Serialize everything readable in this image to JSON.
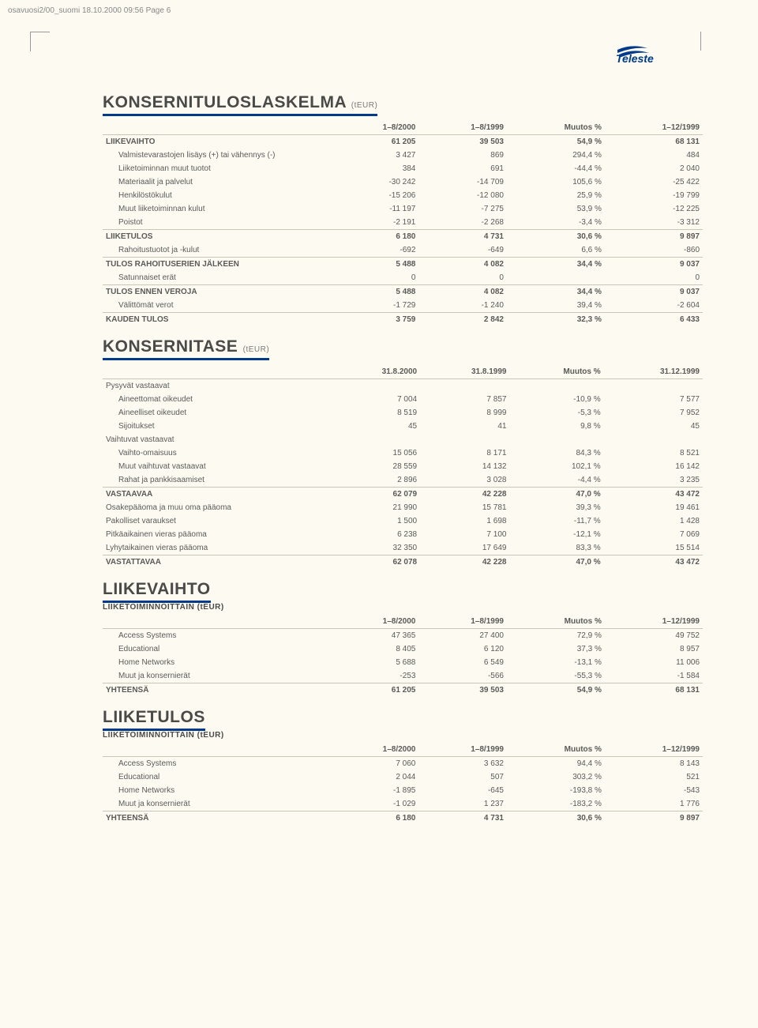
{
  "header_note": "osavuosi2/00_suomi 18.10.2000 09:56 Page 6",
  "logo_alt": "Teleste",
  "s1": {
    "title": "KONSERNITULOSLASKELMA",
    "unit": "(tEUR)",
    "cols": [
      "1–8/2000",
      "1–8/1999",
      "Muutos %",
      "1–12/1999"
    ],
    "rows": [
      {
        "l": "LIIKEVAIHTO",
        "v": [
          "61 205",
          "39 503",
          "54,9 %",
          "68 131"
        ],
        "b": 1
      },
      {
        "l": "Valmistevarastojen lisäys (+) tai vähennys (-)",
        "v": [
          "3 427",
          "869",
          "294,4 %",
          "484"
        ],
        "i": 1
      },
      {
        "l": "Liiketoiminnan muut tuotot",
        "v": [
          "384",
          "691",
          "-44,4 %",
          "2 040"
        ],
        "i": 1
      },
      {
        "l": "Materiaalit ja palvelut",
        "v": [
          "-30 242",
          "-14 709",
          "105,6 %",
          "-25 422"
        ],
        "i": 1
      },
      {
        "l": "Henkilöstökulut",
        "v": [
          "-15 206",
          "-12 080",
          "25,9 %",
          "-19 799"
        ],
        "i": 1
      },
      {
        "l": "Muut liiketoiminnan kulut",
        "v": [
          "-11 197",
          "-7 275",
          "53,9 %",
          "-12 225"
        ],
        "i": 1
      },
      {
        "l": "Poistot",
        "v": [
          "-2 191",
          "-2 268",
          "-3,4 %",
          "-3 312"
        ],
        "i": 1,
        "hr": 1
      },
      {
        "l": "LIIKETULOS",
        "v": [
          "6 180",
          "4 731",
          "30,6 %",
          "9 897"
        ],
        "b": 1
      },
      {
        "l": "Rahoitustuotot ja -kulut",
        "v": [
          "-692",
          "-649",
          "6,6 %",
          "-860"
        ],
        "i": 1,
        "hr": 1
      },
      {
        "l": "TULOS RAHOITUSERIEN JÄLKEEN",
        "v": [
          "5 488",
          "4 082",
          "34,4 %",
          "9 037"
        ],
        "b": 1
      },
      {
        "l": "Satunnaiset erät",
        "v": [
          "0",
          "0",
          "",
          "0"
        ],
        "i": 1,
        "hr": 1
      },
      {
        "l": "TULOS ENNEN VEROJA",
        "v": [
          "5 488",
          "4 082",
          "34,4 %",
          "9 037"
        ],
        "b": 1
      },
      {
        "l": "Välittömät verot",
        "v": [
          "-1 729",
          "-1 240",
          "39,4 %",
          "-2 604"
        ],
        "i": 1,
        "hr": 1
      },
      {
        "l": "KAUDEN TULOS",
        "v": [
          "3 759",
          "2 842",
          "32,3 %",
          "6 433"
        ],
        "b": 1
      }
    ]
  },
  "s2": {
    "title": "KONSERNITASE",
    "unit": "(tEUR)",
    "cols": [
      "31.8.2000",
      "31.8.1999",
      "Muutos %",
      "31.12.1999"
    ],
    "rows": [
      {
        "l": "Pysyvät vastaavat",
        "v": [
          "",
          "",
          "",
          ""
        ]
      },
      {
        "l": "Aineettomat oikeudet",
        "v": [
          "7 004",
          "7 857",
          "-10,9 %",
          "7 577"
        ],
        "i": 1
      },
      {
        "l": "Aineelliset oikeudet",
        "v": [
          "8 519",
          "8 999",
          "-5,3 %",
          "7 952"
        ],
        "i": 1
      },
      {
        "l": "Sijoitukset",
        "v": [
          "45",
          "41",
          "9,8 %",
          "45"
        ],
        "i": 1
      },
      {
        "l": "Vaihtuvat vastaavat",
        "v": [
          "",
          "",
          "",
          ""
        ]
      },
      {
        "l": "Vaihto-omaisuus",
        "v": [
          "15 056",
          "8 171",
          "84,3 %",
          "8 521"
        ],
        "i": 1
      },
      {
        "l": "Muut vaihtuvat vastaavat",
        "v": [
          "28 559",
          "14 132",
          "102,1 %",
          "16 142"
        ],
        "i": 1
      },
      {
        "l": "Rahat ja pankkisaamiset",
        "v": [
          "2 896",
          "3 028",
          "-4,4 %",
          "3 235"
        ],
        "i": 1,
        "hr": 1
      },
      {
        "l": "VASTAAVAA",
        "v": [
          "62 079",
          "42 228",
          "47,0 %",
          "43 472"
        ],
        "b": 1
      },
      {
        "l": "Osakepääoma ja muu oma pääoma",
        "v": [
          "21 990",
          "15 781",
          "39,3 %",
          "19 461"
        ]
      },
      {
        "l": "Pakolliset varaukset",
        "v": [
          "1 500",
          "1 698",
          "-11,7 %",
          "1 428"
        ]
      },
      {
        "l": "Pitkäaikainen vieras pääoma",
        "v": [
          "6 238",
          "7 100",
          "-12,1 %",
          "7 069"
        ]
      },
      {
        "l": "Lyhytaikainen vieras pääoma",
        "v": [
          "32 350",
          "17 649",
          "83,3 %",
          "15 514"
        ],
        "hr": 1
      },
      {
        "l": "VASTATTAVAA",
        "v": [
          "62 078",
          "42 228",
          "47,0 %",
          "43 472"
        ],
        "b": 1
      }
    ]
  },
  "s3": {
    "title": "LIIKEVAIHTO",
    "sub": "LIIKETOIMINNOITTAIN (tEUR)",
    "cols": [
      "1–8/2000",
      "1–8/1999",
      "Muutos %",
      "1–12/1999"
    ],
    "rows": [
      {
        "l": "Access Systems",
        "v": [
          "47 365",
          "27 400",
          "72,9 %",
          "49 752"
        ],
        "i": 1
      },
      {
        "l": "Educational",
        "v": [
          "8 405",
          "6 120",
          "37,3 %",
          "8 957"
        ],
        "i": 1
      },
      {
        "l": "Home Networks",
        "v": [
          "5 688",
          "6 549",
          "-13,1 %",
          "11 006"
        ],
        "i": 1
      },
      {
        "l": "Muut ja konsernierät",
        "v": [
          "-253",
          "-566",
          "-55,3 %",
          "-1 584"
        ],
        "i": 1,
        "hr": 1
      },
      {
        "l": "YHTEENSÄ",
        "v": [
          "61 205",
          "39 503",
          "54,9 %",
          "68 131"
        ],
        "b": 1
      }
    ]
  },
  "s4": {
    "title": "LIIKETULOS",
    "sub": "LIIKETOIMINNOITTAIN (tEUR)",
    "cols": [
      "1–8/2000",
      "1–8/1999",
      "Muutos %",
      "1–12/1999"
    ],
    "rows": [
      {
        "l": "Access Systems",
        "v": [
          "7 060",
          "3 632",
          "94,4 %",
          "8 143"
        ],
        "i": 1
      },
      {
        "l": "Educational",
        "v": [
          "2 044",
          "507",
          "303,2 %",
          "521"
        ],
        "i": 1
      },
      {
        "l": "Home Networks",
        "v": [
          "-1 895",
          "-645",
          "-193,8 %",
          "-543"
        ],
        "i": 1
      },
      {
        "l": "Muut ja konsernierät",
        "v": [
          "-1 029",
          "1 237",
          "-183,2 %",
          "1 776"
        ],
        "i": 1,
        "hr": 1
      },
      {
        "l": "YHTEENSÄ",
        "v": [
          "6 180",
          "4 731",
          "30,6 %",
          "9 897"
        ],
        "b": 1
      }
    ]
  }
}
